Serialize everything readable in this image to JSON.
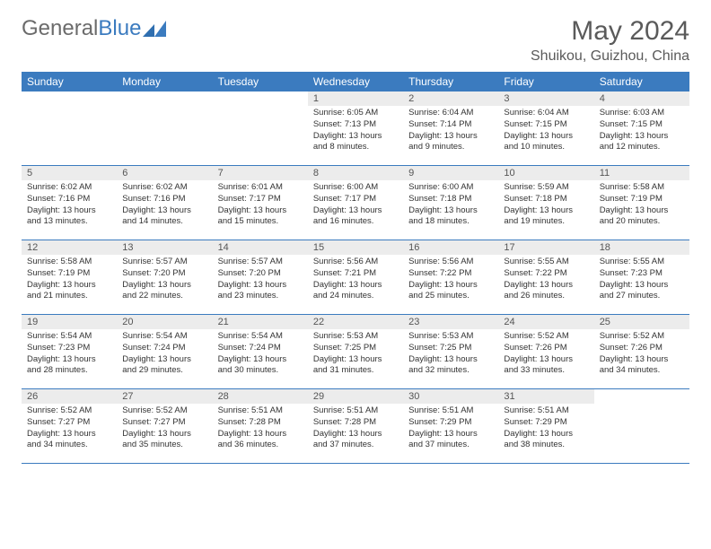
{
  "brand": {
    "part1": "General",
    "part2": "Blue"
  },
  "title": "May 2024",
  "location": "Shuikou, Guizhou, China",
  "colors": {
    "header_bg": "#3b7bbf",
    "header_text": "#ffffff",
    "daynum_bg": "#ececec",
    "border": "#3b7bbf",
    "text": "#333333",
    "title_text": "#5a5a5a",
    "logo_gray": "#6b6b6b",
    "logo_blue": "#3b7bbf"
  },
  "weekdays": [
    "Sunday",
    "Monday",
    "Tuesday",
    "Wednesday",
    "Thursday",
    "Friday",
    "Saturday"
  ],
  "weeks": [
    [
      null,
      null,
      null,
      {
        "n": "1",
        "sr": "6:05 AM",
        "ss": "7:13 PM",
        "dl": "13 hours and 8 minutes."
      },
      {
        "n": "2",
        "sr": "6:04 AM",
        "ss": "7:14 PM",
        "dl": "13 hours and 9 minutes."
      },
      {
        "n": "3",
        "sr": "6:04 AM",
        "ss": "7:15 PM",
        "dl": "13 hours and 10 minutes."
      },
      {
        "n": "4",
        "sr": "6:03 AM",
        "ss": "7:15 PM",
        "dl": "13 hours and 12 minutes."
      }
    ],
    [
      {
        "n": "5",
        "sr": "6:02 AM",
        "ss": "7:16 PM",
        "dl": "13 hours and 13 minutes."
      },
      {
        "n": "6",
        "sr": "6:02 AM",
        "ss": "7:16 PM",
        "dl": "13 hours and 14 minutes."
      },
      {
        "n": "7",
        "sr": "6:01 AM",
        "ss": "7:17 PM",
        "dl": "13 hours and 15 minutes."
      },
      {
        "n": "8",
        "sr": "6:00 AM",
        "ss": "7:17 PM",
        "dl": "13 hours and 16 minutes."
      },
      {
        "n": "9",
        "sr": "6:00 AM",
        "ss": "7:18 PM",
        "dl": "13 hours and 18 minutes."
      },
      {
        "n": "10",
        "sr": "5:59 AM",
        "ss": "7:18 PM",
        "dl": "13 hours and 19 minutes."
      },
      {
        "n": "11",
        "sr": "5:58 AM",
        "ss": "7:19 PM",
        "dl": "13 hours and 20 minutes."
      }
    ],
    [
      {
        "n": "12",
        "sr": "5:58 AM",
        "ss": "7:19 PM",
        "dl": "13 hours and 21 minutes."
      },
      {
        "n": "13",
        "sr": "5:57 AM",
        "ss": "7:20 PM",
        "dl": "13 hours and 22 minutes."
      },
      {
        "n": "14",
        "sr": "5:57 AM",
        "ss": "7:20 PM",
        "dl": "13 hours and 23 minutes."
      },
      {
        "n": "15",
        "sr": "5:56 AM",
        "ss": "7:21 PM",
        "dl": "13 hours and 24 minutes."
      },
      {
        "n": "16",
        "sr": "5:56 AM",
        "ss": "7:22 PM",
        "dl": "13 hours and 25 minutes."
      },
      {
        "n": "17",
        "sr": "5:55 AM",
        "ss": "7:22 PM",
        "dl": "13 hours and 26 minutes."
      },
      {
        "n": "18",
        "sr": "5:55 AM",
        "ss": "7:23 PM",
        "dl": "13 hours and 27 minutes."
      }
    ],
    [
      {
        "n": "19",
        "sr": "5:54 AM",
        "ss": "7:23 PM",
        "dl": "13 hours and 28 minutes."
      },
      {
        "n": "20",
        "sr": "5:54 AM",
        "ss": "7:24 PM",
        "dl": "13 hours and 29 minutes."
      },
      {
        "n": "21",
        "sr": "5:54 AM",
        "ss": "7:24 PM",
        "dl": "13 hours and 30 minutes."
      },
      {
        "n": "22",
        "sr": "5:53 AM",
        "ss": "7:25 PM",
        "dl": "13 hours and 31 minutes."
      },
      {
        "n": "23",
        "sr": "5:53 AM",
        "ss": "7:25 PM",
        "dl": "13 hours and 32 minutes."
      },
      {
        "n": "24",
        "sr": "5:52 AM",
        "ss": "7:26 PM",
        "dl": "13 hours and 33 minutes."
      },
      {
        "n": "25",
        "sr": "5:52 AM",
        "ss": "7:26 PM",
        "dl": "13 hours and 34 minutes."
      }
    ],
    [
      {
        "n": "26",
        "sr": "5:52 AM",
        "ss": "7:27 PM",
        "dl": "13 hours and 34 minutes."
      },
      {
        "n": "27",
        "sr": "5:52 AM",
        "ss": "7:27 PM",
        "dl": "13 hours and 35 minutes."
      },
      {
        "n": "28",
        "sr": "5:51 AM",
        "ss": "7:28 PM",
        "dl": "13 hours and 36 minutes."
      },
      {
        "n": "29",
        "sr": "5:51 AM",
        "ss": "7:28 PM",
        "dl": "13 hours and 37 minutes."
      },
      {
        "n": "30",
        "sr": "5:51 AM",
        "ss": "7:29 PM",
        "dl": "13 hours and 37 minutes."
      },
      {
        "n": "31",
        "sr": "5:51 AM",
        "ss": "7:29 PM",
        "dl": "13 hours and 38 minutes."
      },
      null
    ]
  ],
  "labels": {
    "sunrise": "Sunrise:",
    "sunset": "Sunset:",
    "daylight": "Daylight:"
  }
}
